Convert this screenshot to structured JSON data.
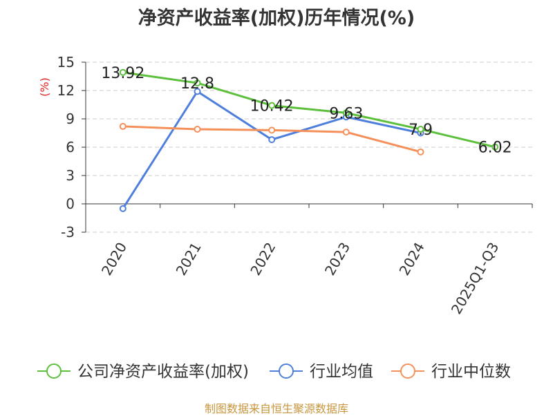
{
  "title": "净资产收益率(加权)历年情况(%)",
  "source": "制图数据来自恒生聚源数据库",
  "chart_data": {
    "type": "line",
    "title": "净资产收益率(加权)历年情况(%)",
    "ylabel": "(%)",
    "categories": [
      "2020",
      "2021",
      "2022",
      "2023",
      "2024",
      "2025Q1-Q3"
    ],
    "yticks": [
      -3,
      0,
      3,
      6,
      9,
      12,
      15
    ],
    "ylim": [
      -3,
      15
    ],
    "grid": true,
    "legend_position": "bottom",
    "series": [
      {
        "name": "公司净资产收益率(加权)",
        "color": "#5cc03c",
        "values": [
          13.92,
          12.8,
          10.42,
          9.63,
          7.9,
          6.02
        ],
        "labels": [
          "13.92",
          "12.8",
          "10.42",
          "9.63",
          "7.9",
          "6.02"
        ]
      },
      {
        "name": "行业均值",
        "color": "#4f7fdc",
        "values": [
          -0.5,
          11.9,
          6.8,
          9.2,
          7.5,
          null
        ]
      },
      {
        "name": "行业中位数",
        "color": "#f6905a",
        "values": [
          8.2,
          7.9,
          7.8,
          7.6,
          5.5,
          null
        ]
      }
    ]
  }
}
